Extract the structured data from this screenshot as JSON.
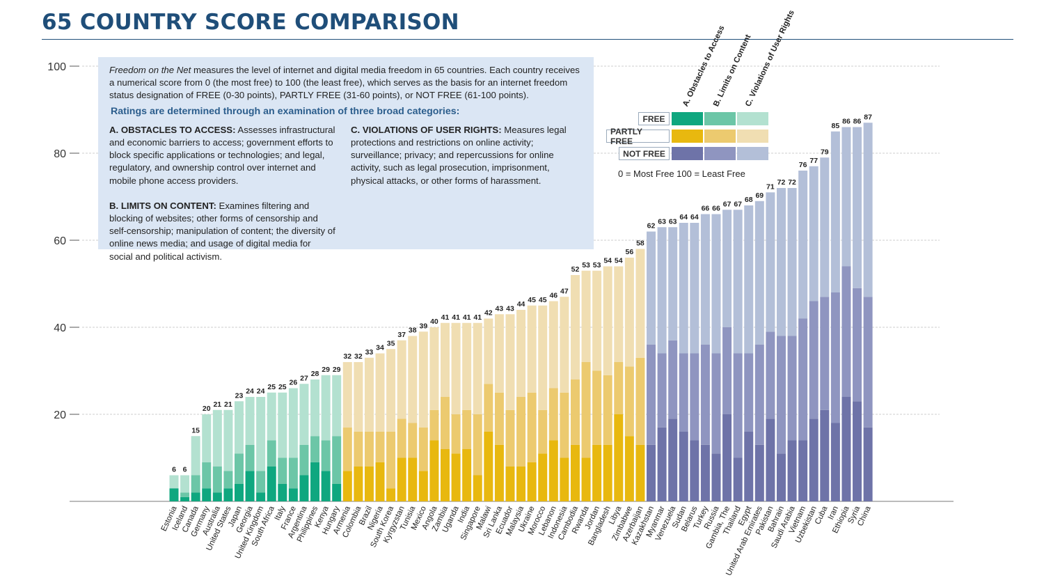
{
  "page": {
    "title": "65 COUNTRY SCORE COMPARISON"
  },
  "info": {
    "intro_italic": "Freedom on the Net",
    "intro_rest": " measures the level of internet and digital media freedom in 65 countries. Each country receives a numerical score from 0 (the most free) to 100 (the least free), which serves as the basis for an internet freedom status designation of FREE (0-30 points), PARTLY FREE (31-60 points), or NOT FREE (61-100 points).",
    "heading": "Ratings are determined through an examination of three broad categories:",
    "a_title": "A. OBSTACLES TO ACCESS:",
    "a_text": " Assesses infrastructural and economic barriers to access; government efforts to block specific applications or technologies; and legal, regulatory, and ownership control over internet and mobile phone access providers.",
    "b_title": "B. LIMITS ON CONTENT:",
    "b_text": " Examines filtering and blocking of websites; other forms of censorship and self-censorship; manipulation of content; the diversity of online news media; and usage of digital media for social and political activism.",
    "c_title": "C. VIOLATIONS OF USER RIGHTS:",
    "c_text": " Measures legal protections and restrictions on online activity; surveillance; privacy; and repercussions for online activity, such as legal prosecution, imprisonment, physical attacks, or other forms of harassment."
  },
  "legend": {
    "col_a": "A. Obstacles to Access",
    "col_b": "B. Limits on Content",
    "col_c": "C. Violations of User Rights",
    "free": "FREE",
    "partly_free": "PARTLY FREE",
    "not_free": "NOT FREE",
    "scale_note": "0 = Most Free   100 = Least Free"
  },
  "colors": {
    "free": [
      "#0fa77f",
      "#6cc6a7",
      "#b3e1d0"
    ],
    "partly_free": [
      "#e8b80f",
      "#ecca6f",
      "#f0deb2"
    ],
    "not_free": [
      "#6e73a8",
      "#8f95c0",
      "#b3bfd8"
    ],
    "title": "#1f4e79",
    "info_bg": "#dbe6f4"
  },
  "chart_data": {
    "type": "bar",
    "stacked": true,
    "ylim": [
      0,
      100
    ],
    "yticks": [
      20,
      40,
      60,
      80,
      100
    ],
    "grid": true,
    "series_names": [
      "A. Obstacles to Access",
      "B. Limits on Content",
      "C. Violations of User Rights"
    ],
    "countries": [
      {
        "name": "Estonia",
        "a": 3,
        "b": 0,
        "c": 3,
        "total": 6,
        "status": "free"
      },
      {
        "name": "Iceland",
        "a": 1,
        "b": 1,
        "c": 4,
        "total": 6,
        "status": "free"
      },
      {
        "name": "Canada",
        "a": 2,
        "b": 4,
        "c": 9,
        "total": 15,
        "status": "free"
      },
      {
        "name": "Germany",
        "a": 3,
        "b": 6,
        "c": 11,
        "total": 20,
        "status": "free"
      },
      {
        "name": "Australia",
        "a": 2,
        "b": 6,
        "c": 13,
        "total": 21,
        "status": "free"
      },
      {
        "name": "United States",
        "a": 3,
        "b": 4,
        "c": 14,
        "total": 21,
        "status": "free"
      },
      {
        "name": "Japan",
        "a": 4,
        "b": 7,
        "c": 12,
        "total": 23,
        "status": "free"
      },
      {
        "name": "Georgia",
        "a": 7,
        "b": 6,
        "c": 11,
        "total": 24,
        "status": "free"
      },
      {
        "name": "United Kingdom",
        "a": 2,
        "b": 5,
        "c": 17,
        "total": 24,
        "status": "free"
      },
      {
        "name": "South Africa",
        "a": 8,
        "b": 6,
        "c": 11,
        "total": 25,
        "status": "free"
      },
      {
        "name": "Italy",
        "a": 4,
        "b": 6,
        "c": 15,
        "total": 25,
        "status": "free"
      },
      {
        "name": "France",
        "a": 3,
        "b": 7,
        "c": 16,
        "total": 26,
        "status": "free"
      },
      {
        "name": "Argentina",
        "a": 6,
        "b": 7,
        "c": 14,
        "total": 27,
        "status": "free"
      },
      {
        "name": "Philippines",
        "a": 9,
        "b": 6,
        "c": 13,
        "total": 28,
        "status": "free"
      },
      {
        "name": "Kenya",
        "a": 7,
        "b": 7,
        "c": 15,
        "total": 29,
        "status": "free"
      },
      {
        "name": "Hungary",
        "a": 4,
        "b": 11,
        "c": 14,
        "total": 29,
        "status": "free"
      },
      {
        "name": "Armenia",
        "a": 7,
        "b": 10,
        "c": 15,
        "total": 32,
        "status": "partly_free"
      },
      {
        "name": "Colombia",
        "a": 8,
        "b": 8,
        "c": 16,
        "total": 32,
        "status": "partly_free"
      },
      {
        "name": "Brazil",
        "a": 8,
        "b": 8,
        "c": 17,
        "total": 33,
        "status": "partly_free"
      },
      {
        "name": "Nigeria",
        "a": 9,
        "b": 7,
        "c": 18,
        "total": 34,
        "status": "partly_free"
      },
      {
        "name": "South Korea",
        "a": 3,
        "b": 13,
        "c": 19,
        "total": 35,
        "status": "partly_free"
      },
      {
        "name": "Kyrgyzstan",
        "a": 10,
        "b": 9,
        "c": 18,
        "total": 37,
        "status": "partly_free"
      },
      {
        "name": "Tunisia",
        "a": 10,
        "b": 8,
        "c": 20,
        "total": 38,
        "status": "partly_free"
      },
      {
        "name": "Mexico",
        "a": 7,
        "b": 10,
        "c": 22,
        "total": 39,
        "status": "partly_free"
      },
      {
        "name": "Angola",
        "a": 14,
        "b": 7,
        "c": 19,
        "total": 40,
        "status": "partly_free"
      },
      {
        "name": "Zambia",
        "a": 12,
        "b": 12,
        "c": 17,
        "total": 41,
        "status": "partly_free"
      },
      {
        "name": "Uganda",
        "a": 11,
        "b": 9,
        "c": 21,
        "total": 41,
        "status": "partly_free"
      },
      {
        "name": "India",
        "a": 12,
        "b": 9,
        "c": 20,
        "total": 41,
        "status": "partly_free"
      },
      {
        "name": "Singapore",
        "a": 6,
        "b": 14,
        "c": 21,
        "total": 41,
        "status": "partly_free"
      },
      {
        "name": "Malawi",
        "a": 16,
        "b": 11,
        "c": 15,
        "total": 42,
        "status": "partly_free"
      },
      {
        "name": "Sri Lanka",
        "a": 13,
        "b": 12,
        "c": 18,
        "total": 43,
        "status": "partly_free"
      },
      {
        "name": "Ecuador",
        "a": 8,
        "b": 13,
        "c": 22,
        "total": 43,
        "status": "partly_free"
      },
      {
        "name": "Malaysia",
        "a": 8,
        "b": 16,
        "c": 20,
        "total": 44,
        "status": "partly_free"
      },
      {
        "name": "Ukraine",
        "a": 9,
        "b": 16,
        "c": 20,
        "total": 45,
        "status": "partly_free"
      },
      {
        "name": "Morocco",
        "a": 11,
        "b": 10,
        "c": 24,
        "total": 45,
        "status": "partly_free"
      },
      {
        "name": "Lebanon",
        "a": 14,
        "b": 12,
        "c": 20,
        "total": 46,
        "status": "partly_free"
      },
      {
        "name": "Indonesia",
        "a": 10,
        "b": 15,
        "c": 22,
        "total": 47,
        "status": "partly_free"
      },
      {
        "name": "Cambodia",
        "a": 13,
        "b": 15,
        "c": 24,
        "total": 52,
        "status": "partly_free"
      },
      {
        "name": "Rwanda",
        "a": 10,
        "b": 22,
        "c": 21,
        "total": 53,
        "status": "partly_free"
      },
      {
        "name": "Jordan",
        "a": 13,
        "b": 17,
        "c": 23,
        "total": 53,
        "status": "partly_free"
      },
      {
        "name": "Bangladesh",
        "a": 13,
        "b": 16,
        "c": 25,
        "total": 54,
        "status": "partly_free"
      },
      {
        "name": "Libya",
        "a": 20,
        "b": 12,
        "c": 22,
        "total": 54,
        "status": "partly_free"
      },
      {
        "name": "Zimbabwe",
        "a": 15,
        "b": 16,
        "c": 25,
        "total": 56,
        "status": "partly_free"
      },
      {
        "name": "Azerbaijan",
        "a": 13,
        "b": 20,
        "c": 25,
        "total": 58,
        "status": "partly_free"
      },
      {
        "name": "Kazakhstan",
        "a": 13,
        "b": 23,
        "c": 26,
        "total": 62,
        "status": "not_free"
      },
      {
        "name": "Myanmar",
        "a": 17,
        "b": 17,
        "c": 29,
        "total": 63,
        "status": "not_free"
      },
      {
        "name": "Venezuela",
        "a": 19,
        "b": 18,
        "c": 26,
        "total": 63,
        "status": "not_free"
      },
      {
        "name": "Sudan",
        "a": 16,
        "b": 18,
        "c": 30,
        "total": 64,
        "status": "not_free"
      },
      {
        "name": "Belarus",
        "a": 14,
        "b": 20,
        "c": 30,
        "total": 64,
        "status": "not_free"
      },
      {
        "name": "Turkey",
        "a": 13,
        "b": 23,
        "c": 30,
        "total": 66,
        "status": "not_free"
      },
      {
        "name": "Russia",
        "a": 11,
        "b": 23,
        "c": 32,
        "total": 66,
        "status": "not_free"
      },
      {
        "name": "Gambia, The",
        "a": 20,
        "b": 20,
        "c": 27,
        "total": 67,
        "status": "not_free"
      },
      {
        "name": "Thailand",
        "a": 10,
        "b": 24,
        "c": 33,
        "total": 67,
        "status": "not_free"
      },
      {
        "name": "Egypt",
        "a": 16,
        "b": 18,
        "c": 34,
        "total": 68,
        "status": "not_free"
      },
      {
        "name": "United Arab Emirates",
        "a": 13,
        "b": 23,
        "c": 33,
        "total": 69,
        "status": "not_free"
      },
      {
        "name": "Pakistan",
        "a": 19,
        "b": 20,
        "c": 32,
        "total": 71,
        "status": "not_free"
      },
      {
        "name": "Bahrain",
        "a": 11,
        "b": 27,
        "c": 34,
        "total": 72,
        "status": "not_free"
      },
      {
        "name": "Saudi Arabia",
        "a": 14,
        "b": 24,
        "c": 34,
        "total": 72,
        "status": "not_free"
      },
      {
        "name": "Vietnam",
        "a": 14,
        "b": 28,
        "c": 34,
        "total": 76,
        "status": "not_free"
      },
      {
        "name": "Uzbekistan",
        "a": 19,
        "b": 27,
        "c": 31,
        "total": 77,
        "status": "not_free"
      },
      {
        "name": "Cuba",
        "a": 21,
        "b": 26,
        "c": 32,
        "total": 79,
        "status": "not_free"
      },
      {
        "name": "Iran",
        "a": 18,
        "b": 30,
        "c": 37,
        "total": 85,
        "status": "not_free"
      },
      {
        "name": "Ethiopia",
        "a": 24,
        "b": 30,
        "c": 32,
        "total": 86,
        "status": "not_free"
      },
      {
        "name": "Syria",
        "a": 23,
        "b": 26,
        "c": 37,
        "total": 86,
        "status": "not_free"
      },
      {
        "name": "China",
        "a": 17,
        "b": 30,
        "c": 40,
        "total": 87,
        "status": "not_free"
      }
    ]
  }
}
